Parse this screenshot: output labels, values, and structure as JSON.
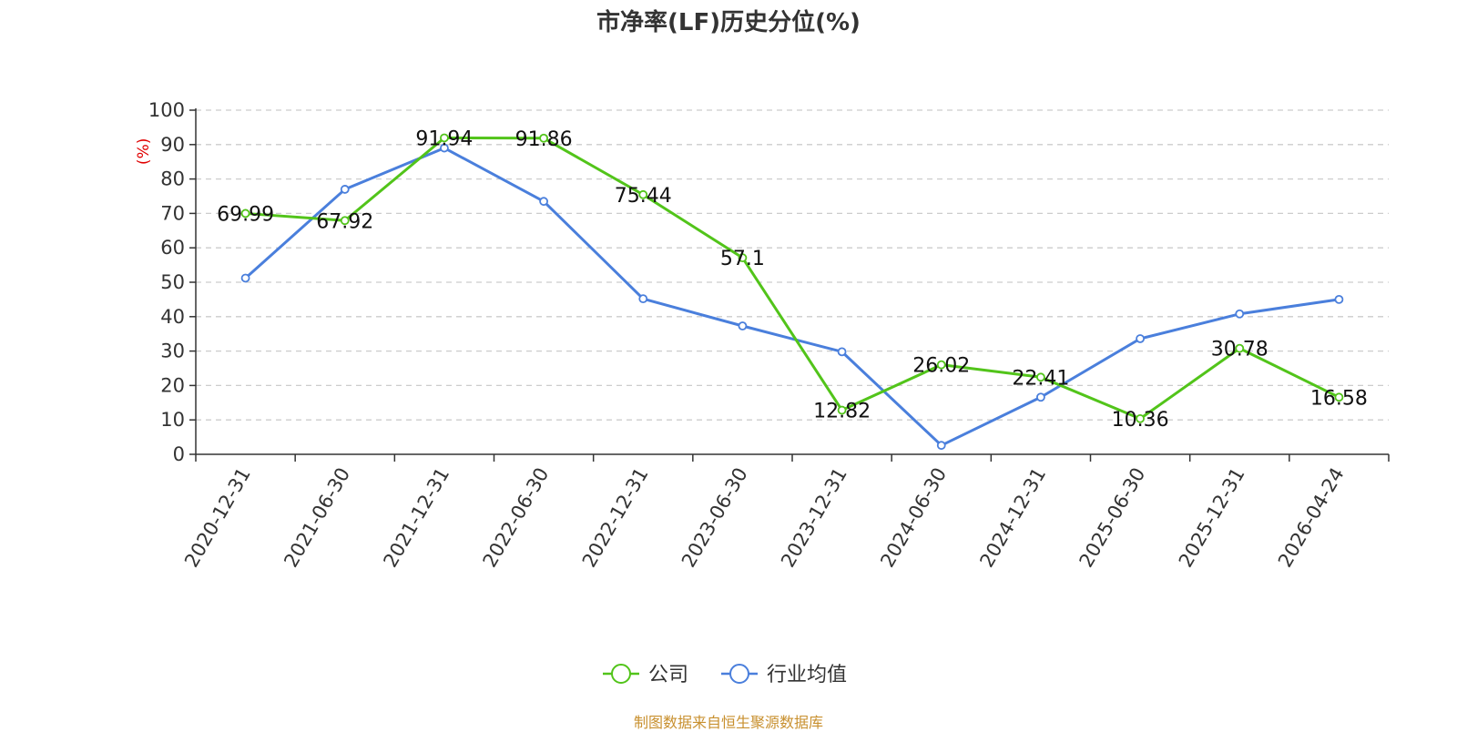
{
  "chart_data": {
    "type": "line",
    "title": "市净率(LF)历史分位(%)",
    "ylabel": "(%)",
    "ylim": [
      0,
      100
    ],
    "yticks": [
      "0",
      "10",
      "20",
      "30",
      "40",
      "50",
      "60",
      "70",
      "80",
      "90",
      "100"
    ],
    "categories": [
      "2020-12-31",
      "2021-06-30",
      "2021-12-31",
      "2022-06-30",
      "2022-12-31",
      "2023-06-30",
      "2023-12-31",
      "2024-06-30",
      "2024-12-31",
      "2025-06-30",
      "2025-12-31",
      "2026-04-24"
    ],
    "series": [
      {
        "name": "公司",
        "color": "#52c41a",
        "values": [
          69.99,
          67.92,
          91.94,
          91.86,
          75.44,
          57.1,
          12.82,
          26.02,
          22.41,
          10.36,
          30.78,
          16.58
        ],
        "labels": [
          "69.99",
          "67.92",
          "91.94",
          "91.86",
          "75.44",
          "57.1",
          "12.82",
          "26.02",
          "22.41",
          "10.36",
          "30.78",
          "16.58"
        ]
      },
      {
        "name": "行业均值",
        "color": "#4a7fdc",
        "values": [
          51.2,
          77.0,
          89.0,
          73.5,
          45.2,
          37.3,
          29.8,
          2.6,
          16.6,
          33.6,
          40.8,
          45.0
        ]
      }
    ],
    "grid": true,
    "legend": "bottom-center"
  },
  "footer": {
    "source": "制图数据来自恒生聚源数据库"
  }
}
